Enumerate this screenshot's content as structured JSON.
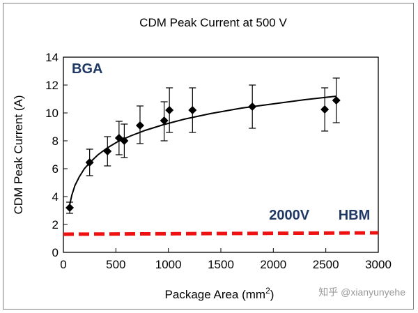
{
  "chart_data": {
    "type": "scatter",
    "title": "CDM Peak Current at 500 V",
    "xlabel": "Package Area (mm",
    "xlabel_sup": "2",
    "xlabel_end": ")",
    "ylabel": "CDM Peak Current (A)",
    "xlim": [
      0,
      3000
    ],
    "ylim": [
      0,
      14
    ],
    "xticks": [
      0,
      500,
      1000,
      1500,
      2000,
      2500,
      3000
    ],
    "yticks": [
      0,
      2,
      4,
      6,
      8,
      10,
      12,
      14
    ],
    "grid": false,
    "series": [
      {
        "type": "scatter_errorbar",
        "color": "#000000",
        "points": [
          {
            "x": 60,
            "y": 3.2,
            "ylo": 2.8,
            "yhi": 3.6
          },
          {
            "x": 250,
            "y": 6.45,
            "ylo": 5.5,
            "yhi": 7.4
          },
          {
            "x": 420,
            "y": 7.25,
            "ylo": 6.2,
            "yhi": 8.3
          },
          {
            "x": 530,
            "y": 8.2,
            "ylo": 7.0,
            "yhi": 9.4
          },
          {
            "x": 580,
            "y": 8.0,
            "ylo": 6.8,
            "yhi": 9.2
          },
          {
            "x": 730,
            "y": 9.1,
            "ylo": 7.8,
            "yhi": 10.5
          },
          {
            "x": 960,
            "y": 9.45,
            "ylo": 8.0,
            "yhi": 10.8
          },
          {
            "x": 1010,
            "y": 10.2,
            "ylo": 8.6,
            "yhi": 11.8
          },
          {
            "x": 1230,
            "y": 10.2,
            "ylo": 8.6,
            "yhi": 11.8
          },
          {
            "x": 1800,
            "y": 10.45,
            "ylo": 8.9,
            "yhi": 12.0
          },
          {
            "x": 2490,
            "y": 10.25,
            "ylo": 8.7,
            "yhi": 11.8
          },
          {
            "x": 2600,
            "y": 10.9,
            "ylo": 9.3,
            "yhi": 12.5
          }
        ]
      },
      {
        "type": "fit_curve",
        "color": "#000000",
        "x": [
          60,
          80,
          110,
          150,
          200,
          260,
          330,
          420,
          520,
          640,
          780,
          950,
          1150,
          1400,
          1700,
          2000,
          2300,
          2600
        ],
        "y": [
          3.4,
          4.1,
          4.8,
          5.4,
          6.0,
          6.5,
          7.0,
          7.5,
          7.95,
          8.35,
          8.75,
          9.15,
          9.55,
          9.95,
          10.35,
          10.65,
          10.95,
          11.2
        ]
      },
      {
        "type": "dashed_line",
        "color": "#ee1111",
        "x": [
          0,
          3000
        ],
        "y": [
          1.3,
          1.4
        ]
      }
    ],
    "annotations": [
      {
        "text": "BGA",
        "x": 80,
        "y": 12.85
      },
      {
        "text": "2000V",
        "x": 1960,
        "y": 2.35
      },
      {
        "text": "HBM",
        "x": 2620,
        "y": 2.35
      }
    ]
  },
  "watermark": "知乎 @xianyunyehe"
}
